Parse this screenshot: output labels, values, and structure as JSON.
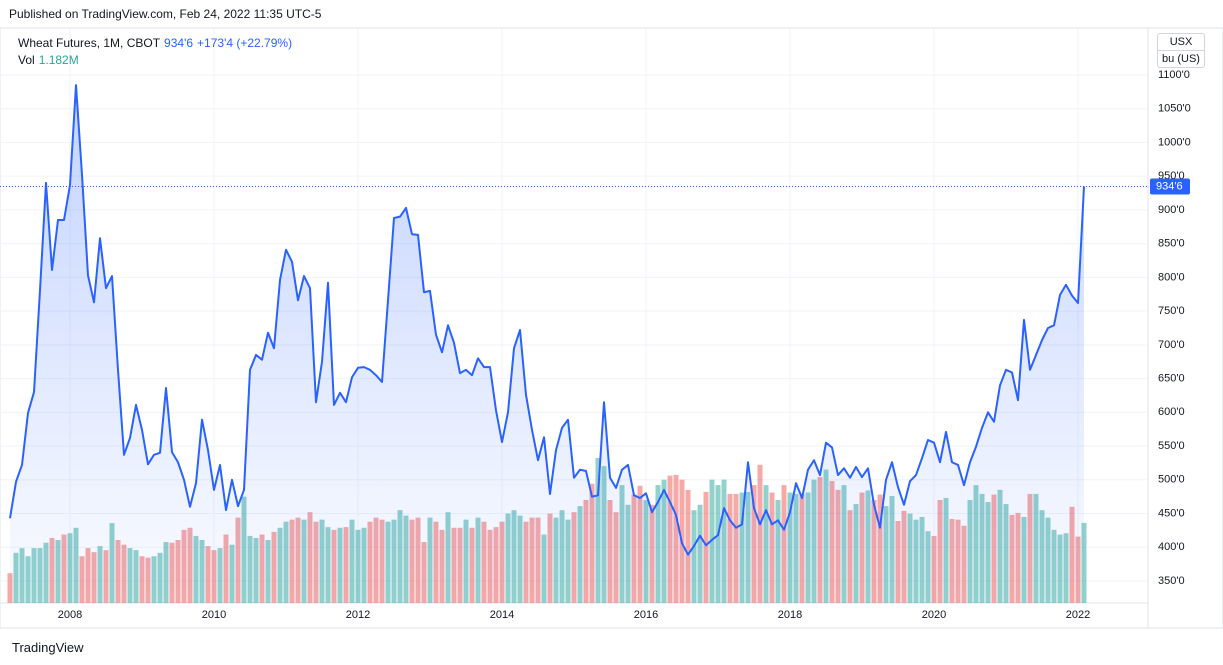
{
  "published": "Published on TradingView.com, Feb 24, 2022 11:35 UTC-5",
  "brand": "TradingView",
  "chart_data": {
    "type": "line",
    "title": "Wheat Futures, 1M, CBOT",
    "last_label": "934'6",
    "change_label": "+173'4 (+22.79%)",
    "currency": "USX",
    "unit": "bu (US)",
    "color": "#2962ff",
    "grid": true,
    "categories": [
      null,
      null,
      null,
      null,
      null,
      null,
      null,
      null,
      null,
      null,
      "2008",
      null,
      null,
      null,
      null,
      null,
      null,
      null,
      null,
      null,
      null,
      null,
      null,
      null,
      null,
      null,
      null,
      null,
      null,
      null,
      null,
      null,
      null,
      null,
      "2010",
      null,
      null,
      null,
      null,
      null,
      null,
      null,
      null,
      null,
      null,
      null,
      null,
      null,
      null,
      null,
      null,
      null,
      null,
      null,
      null,
      null,
      null,
      null,
      "2012",
      null,
      null,
      null,
      null,
      null,
      null,
      null,
      null,
      null,
      null,
      null,
      null,
      null,
      null,
      null,
      null,
      null,
      null,
      null,
      null,
      null,
      null,
      null,
      "2014",
      null,
      null,
      null,
      null,
      null,
      null,
      null,
      null,
      null,
      null,
      null,
      null,
      null,
      null,
      null,
      null,
      null,
      null,
      null,
      null,
      null,
      null,
      null,
      "2016",
      null,
      null,
      null,
      null,
      null,
      null,
      null,
      null,
      null,
      null,
      null,
      null,
      null,
      null,
      null,
      null,
      null,
      null,
      null,
      null,
      null,
      null,
      null,
      "2018",
      null,
      null,
      null,
      null,
      null,
      null,
      null,
      null,
      null,
      null,
      null,
      null,
      null,
      null,
      null,
      null,
      null,
      null,
      null,
      null,
      null,
      null,
      null,
      "2020",
      null,
      null,
      null,
      null,
      null,
      null,
      null,
      null,
      null,
      null,
      null,
      null,
      null,
      null,
      null,
      null,
      null,
      null,
      null,
      null,
      null,
      null,
      null,
      "2022",
      null
    ],
    "values": [
      443,
      497,
      522,
      599,
      630,
      781,
      940,
      811,
      885,
      885,
      937,
      1085,
      952,
      803,
      763,
      858,
      784,
      802,
      663,
      537,
      562,
      611,
      574,
      523,
      537,
      540,
      636,
      541,
      526,
      500,
      460,
      495,
      589,
      544,
      485,
      522,
      455,
      500,
      461,
      485,
      663,
      685,
      678,
      718,
      695,
      796,
      841,
      823,
      766,
      802,
      784,
      615,
      675,
      792,
      611,
      629,
      615,
      652,
      666,
      667,
      663,
      655,
      645,
      766,
      888,
      890,
      903,
      864,
      863,
      778,
      780,
      715,
      689,
      729,
      703,
      658,
      663,
      655,
      680,
      667,
      667,
      603,
      556,
      600,
      695,
      722,
      626,
      574,
      529,
      563,
      479,
      544,
      577,
      589,
      503,
      515,
      513,
      475,
      477,
      615,
      503,
      488,
      515,
      522,
      477,
      473,
      480,
      452,
      467,
      485,
      467,
      448,
      406,
      389,
      402,
      417,
      403,
      411,
      418,
      458,
      440,
      429,
      434,
      526,
      458,
      434,
      455,
      434,
      440,
      426,
      452,
      495,
      473,
      515,
      529,
      507,
      555,
      548,
      507,
      517,
      503,
      519,
      504,
      517,
      463,
      429,
      500,
      526,
      489,
      463,
      498,
      507,
      532,
      559,
      555,
      526,
      571,
      526,
      522,
      492,
      526,
      549,
      577,
      600,
      586,
      640,
      663,
      659,
      618,
      737,
      663,
      685,
      707,
      725,
      729,
      774,
      789,
      773,
      762,
      934.75
    ],
    "volume": {
      "name": "Vol",
      "last_label": "1.182M",
      "up_color": "rgba(38,166,154,0.5)",
      "down_color": "rgba(239,83,80,0.5)",
      "values": [
        0.44,
        0.74,
        0.81,
        0.69,
        0.81,
        0.81,
        0.89,
        0.96,
        0.93,
        1.01,
        1.03,
        1.11,
        0.69,
        0.81,
        0.75,
        0.84,
        0.78,
        1.18,
        0.93,
        0.86,
        0.81,
        0.78,
        0.69,
        0.67,
        0.69,
        0.74,
        0.9,
        0.89,
        0.93,
        1.08,
        1.11,
        0.99,
        0.93,
        0.84,
        0.78,
        0.81,
        1.01,
        0.86,
        1.26,
        1.57,
        0.99,
        0.96,
        1.01,
        0.93,
        1.05,
        1.11,
        1.2,
        1.23,
        1.26,
        1.23,
        1.34,
        1.2,
        1.23,
        1.12,
        1.08,
        1.11,
        1.12,
        1.23,
        1.08,
        1.11,
        1.2,
        1.26,
        1.23,
        1.2,
        1.23,
        1.37,
        1.29,
        1.23,
        1.26,
        0.9,
        1.26,
        1.2,
        1.08,
        1.34,
        1.11,
        1.11,
        1.23,
        1.11,
        1.26,
        1.2,
        1.08,
        1.12,
        1.2,
        1.32,
        1.37,
        1.29,
        1.2,
        1.26,
        1.26,
        1.01,
        1.32,
        1.26,
        1.37,
        1.23,
        1.34,
        1.43,
        1.52,
        1.76,
        2.14,
        2.02,
        1.52,
        1.34,
        1.74,
        1.45,
        1.6,
        1.73,
        1.52,
        1.45,
        1.74,
        1.82,
        1.88,
        1.89,
        1.82,
        1.67,
        1.37,
        1.45,
        1.64,
        1.82,
        1.74,
        1.82,
        1.61,
        1.61,
        1.63,
        1.64,
        1.74,
        2.04,
        1.74,
        1.63,
        1.52,
        1.74,
        1.63,
        1.61,
        1.61,
        1.63,
        1.82,
        1.86,
        1.97,
        1.8,
        1.67,
        1.74,
        1.37,
        1.46,
        1.63,
        1.66,
        1.52,
        1.6,
        1.43,
        1.58,
        1.21,
        1.36,
        1.32,
        1.23,
        1.27,
        1.06,
        0.99,
        1.52,
        1.55,
        1.24,
        1.23,
        1.14,
        1.52,
        1.74,
        1.61,
        1.49,
        1.6,
        1.67,
        1.46,
        1.3,
        1.33,
        1.27,
        1.61,
        1.61,
        1.37,
        1.26,
        1.08,
        1.01,
        1.03,
        1.42,
        0.98,
        1.182
      ]
    },
    "ylim": [
      317.4,
      1169.6
    ],
    "yticks": [
      {
        "value": 350,
        "label": "350'0"
      },
      {
        "value": 400,
        "label": "400'0"
      },
      {
        "value": 450,
        "label": "450'0"
      },
      {
        "value": 500,
        "label": "500'0"
      },
      {
        "value": 550,
        "label": "550'0"
      },
      {
        "value": 600,
        "label": "600'0"
      },
      {
        "value": 650,
        "label": "650'0"
      },
      {
        "value": 700,
        "label": "700'0"
      },
      {
        "value": 750,
        "label": "750'0"
      },
      {
        "value": 800,
        "label": "800'0"
      },
      {
        "value": 850,
        "label": "850'0"
      },
      {
        "value": 900,
        "label": "900'0"
      },
      {
        "value": 950,
        "label": "950'0"
      },
      {
        "value": 1000,
        "label": "1000'0"
      },
      {
        "value": 1050,
        "label": "1050'0"
      },
      {
        "value": 1100,
        "label": "1100'0"
      }
    ]
  }
}
